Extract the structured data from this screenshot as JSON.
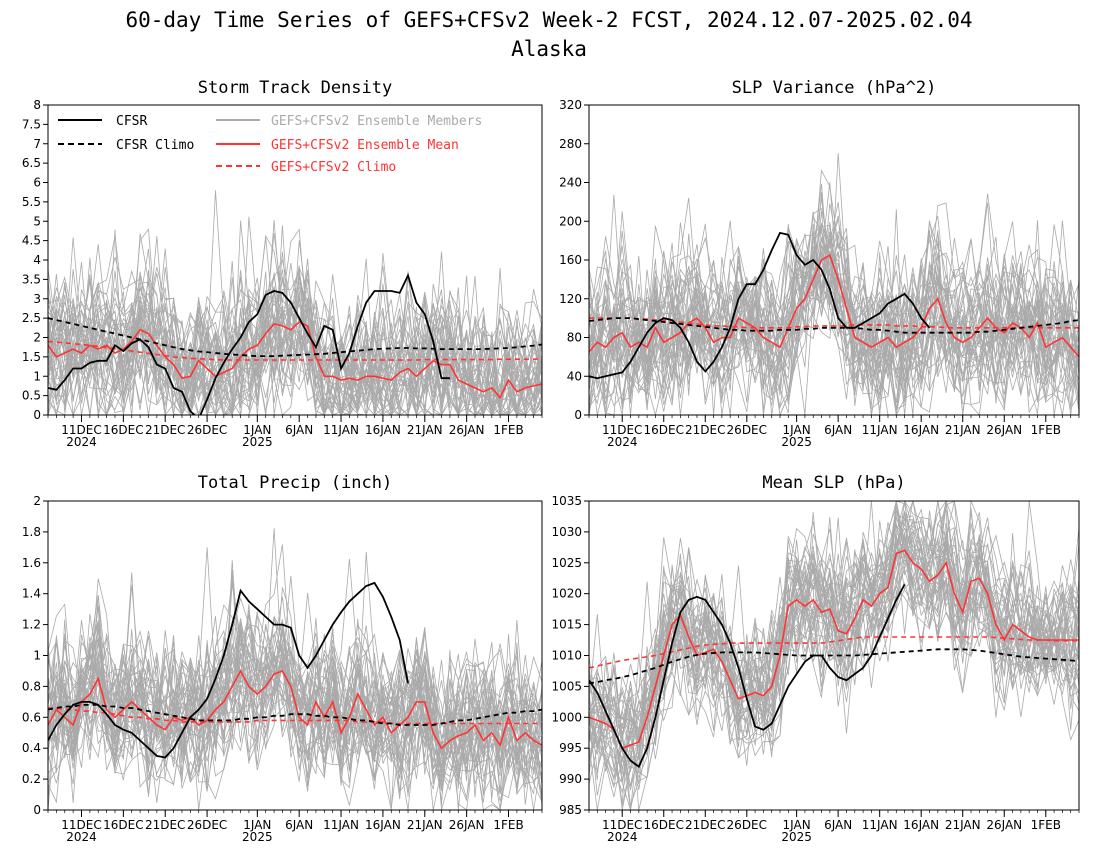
{
  "page": {
    "title_line1": "60-day Time Series of GEFS+CFSv2 Week-2 FCST, 2024.12.07-2025.02.04",
    "title_line2": "Alaska"
  },
  "colors": {
    "cfsr": "#000000",
    "ensemble_members": "#aaaaaa",
    "ensemble_mean": "#ff3333",
    "gefs_climo": "#ff3333"
  },
  "legend": {
    "cfsr": "CFSR",
    "cfsr_climo": "CFSR Climo",
    "members": "GEFS+CFSv2 Ensemble Members",
    "mean": "GEFS+CFSv2 Ensemble Mean",
    "gefs_climo": "GEFS+CFSv2 Climo"
  },
  "x_axis": {
    "n_days": 60,
    "tick_days": [
      4,
      9,
      14,
      19,
      25,
      30,
      35,
      40,
      45,
      50,
      55
    ],
    "tick_labels": [
      "11DEC",
      "16DEC",
      "21DEC",
      "26DEC",
      "1JAN",
      "6JAN",
      "11JAN",
      "16JAN",
      "21JAN",
      "26JAN",
      "1FEB"
    ],
    "year_labels": [
      {
        "day": 4,
        "text": "2024"
      },
      {
        "day": 25,
        "text": "2025"
      }
    ]
  },
  "chart_data": [
    {
      "type": "line",
      "title": "Storm Track Density",
      "ylim": [
        0,
        8
      ],
      "yticks": [
        "0",
        "0.5",
        "1",
        "1.5",
        "2",
        "2.5",
        "3",
        "3.5",
        "4",
        "4.5",
        "5",
        "5.5",
        "6",
        "6.5",
        "7",
        "7.5",
        "8"
      ],
      "member_spread": 1.1,
      "member_max": 5.8,
      "series": {
        "cfsr": [
          0.7,
          0.65,
          0.9,
          1.2,
          1.2,
          1.35,
          1.4,
          1.4,
          1.8,
          1.65,
          1.85,
          1.95,
          1.75,
          1.3,
          1.2,
          0.7,
          0.6,
          0.1,
          -0.1,
          0.4,
          0.95,
          1.35,
          1.7,
          2.0,
          2.4,
          2.6,
          3.1,
          3.2,
          3.15,
          2.9,
          2.5,
          2.1,
          1.75,
          2.3,
          2.2,
          1.2,
          1.6,
          2.3,
          2.9,
          3.2,
          3.2,
          3.2,
          3.15,
          3.6,
          2.9,
          2.6,
          1.9,
          0.95,
          0.95
        ],
        "cfsr_climo": [
          2.5,
          2.45,
          2.4,
          2.35,
          2.3,
          2.25,
          2.2,
          2.15,
          2.1,
          2.05,
          2.0,
          1.95,
          1.9,
          1.85,
          1.8,
          1.75,
          1.7,
          1.67,
          1.64,
          1.62,
          1.6,
          1.58,
          1.56,
          1.55,
          1.53,
          1.52,
          1.52,
          1.52,
          1.53,
          1.54,
          1.55,
          1.56,
          1.57,
          1.58,
          1.6,
          1.62,
          1.64,
          1.66,
          1.68,
          1.7,
          1.71,
          1.72,
          1.73,
          1.73,
          1.72,
          1.72,
          1.71,
          1.7,
          1.7,
          1.7,
          1.7,
          1.7,
          1.7,
          1.71,
          1.72,
          1.73,
          1.75,
          1.77,
          1.79,
          1.82
        ],
        "mean": [
          1.8,
          1.5,
          1.6,
          1.7,
          1.6,
          1.8,
          1.7,
          1.8,
          1.6,
          1.7,
          1.9,
          2.2,
          2.1,
          1.8,
          1.5,
          1.3,
          0.95,
          1.0,
          1.4,
          1.2,
          1.0,
          1.1,
          1.2,
          1.5,
          1.7,
          1.8,
          2.1,
          2.35,
          2.3,
          2.2,
          2.4,
          2.3,
          1.5,
          1.0,
          1.0,
          0.9,
          0.95,
          0.9,
          1.0,
          1.0,
          0.95,
          0.9,
          1.1,
          1.2,
          1.0,
          1.2,
          1.4,
          1.3,
          1.3,
          0.9,
          0.8,
          0.7,
          0.6,
          0.7,
          0.45,
          0.9,
          0.6,
          0.7,
          0.75,
          0.8
        ],
        "gefs_climo": [
          1.9,
          1.88,
          1.86,
          1.84,
          1.82,
          1.8,
          1.77,
          1.74,
          1.71,
          1.68,
          1.65,
          1.62,
          1.59,
          1.56,
          1.53,
          1.5,
          1.48,
          1.46,
          1.45,
          1.44,
          1.43,
          1.42,
          1.42,
          1.42,
          1.42,
          1.42,
          1.42,
          1.42,
          1.42,
          1.42,
          1.42,
          1.42,
          1.42,
          1.42,
          1.42,
          1.42,
          1.42,
          1.42,
          1.42,
          1.42,
          1.42,
          1.42,
          1.42,
          1.42,
          1.42,
          1.43,
          1.43,
          1.43,
          1.43,
          1.43,
          1.43,
          1.43,
          1.43,
          1.43,
          1.44,
          1.44,
          1.44,
          1.44,
          1.44,
          1.45
        ]
      }
    },
    {
      "type": "line",
      "title": "SLP Variance (hPa^2)",
      "ylim": [
        0,
        320
      ],
      "yticks": [
        "0",
        "40",
        "80",
        "120",
        "160",
        "200",
        "240",
        "280",
        "320"
      ],
      "member_spread": 45,
      "member_max": 320,
      "series": {
        "cfsr": [
          40,
          38,
          40,
          42,
          44,
          55,
          70,
          85,
          95,
          100,
          98,
          90,
          75,
          55,
          45,
          55,
          70,
          90,
          120,
          135,
          135,
          150,
          170,
          188,
          186,
          165,
          155,
          160,
          150,
          130,
          100,
          90,
          90,
          95,
          100,
          105,
          115,
          120,
          125,
          115,
          100,
          90
        ],
        "cfsr_climo": [
          97,
          98,
          99,
          100,
          100,
          100,
          99,
          98,
          97,
          96,
          95,
          94,
          93,
          92,
          91,
          90,
          89,
          88,
          88,
          87,
          87,
          87,
          87,
          88,
          88,
          88,
          89,
          89,
          90,
          90,
          90,
          90,
          90,
          89,
          88,
          88,
          87,
          86,
          85,
          85,
          85,
          85,
          85,
          85,
          85,
          85,
          85,
          86,
          86,
          87,
          88,
          89,
          90,
          91,
          92,
          93,
          94,
          95,
          97,
          98
        ],
        "mean": [
          65,
          75,
          70,
          80,
          85,
          70,
          75,
          70,
          90,
          75,
          80,
          85,
          95,
          100,
          90,
          75,
          80,
          80,
          100,
          95,
          90,
          80,
          75,
          70,
          90,
          110,
          120,
          140,
          160,
          165,
          140,
          110,
          80,
          75,
          70,
          75,
          80,
          70,
          75,
          80,
          90,
          110,
          120,
          95,
          80,
          75,
          80,
          90,
          100,
          90,
          85,
          95,
          90,
          80,
          95,
          70,
          75,
          80,
          70,
          60
        ],
        "gefs_climo": [
          100,
          100,
          100,
          100,
          100,
          100,
          99,
          99,
          98,
          98,
          97,
          96,
          95,
          94,
          93,
          92,
          92,
          91,
          91,
          90,
          90,
          90,
          90,
          90,
          90,
          91,
          91,
          92,
          92,
          92,
          92,
          92,
          93,
          93,
          93,
          93,
          93,
          92,
          92,
          92,
          91,
          91,
          91,
          90,
          90,
          90,
          90,
          90,
          90,
          90,
          90,
          90,
          90,
          90,
          90,
          90,
          90,
          90,
          90,
          90
        ]
      }
    },
    {
      "type": "line",
      "title": "Total Precip (inch)",
      "ylim": [
        0,
        2
      ],
      "yticks": [
        "0",
        "0.2",
        "0.4",
        "0.6",
        "0.8",
        "1",
        "1.2",
        "1.4",
        "1.6",
        "1.8",
        "2"
      ],
      "member_spread": 0.28,
      "member_max": 2.0,
      "series": {
        "cfsr": [
          0.45,
          0.55,
          0.62,
          0.68,
          0.7,
          0.7,
          0.68,
          0.62,
          0.55,
          0.52,
          0.5,
          0.45,
          0.4,
          0.35,
          0.34,
          0.4,
          0.5,
          0.6,
          0.65,
          0.72,
          0.85,
          1.0,
          1.2,
          1.42,
          1.35,
          1.3,
          1.25,
          1.2,
          1.2,
          1.18,
          1.0,
          0.92,
          1.0,
          1.1,
          1.2,
          1.28,
          1.35,
          1.4,
          1.45,
          1.47,
          1.38,
          1.25,
          1.1,
          0.82
        ],
        "cfsr_climo": [
          0.65,
          0.66,
          0.67,
          0.67,
          0.68,
          0.68,
          0.68,
          0.67,
          0.67,
          0.66,
          0.66,
          0.65,
          0.64,
          0.63,
          0.62,
          0.61,
          0.6,
          0.59,
          0.58,
          0.58,
          0.58,
          0.58,
          0.58,
          0.59,
          0.59,
          0.6,
          0.6,
          0.61,
          0.61,
          0.62,
          0.62,
          0.62,
          0.61,
          0.61,
          0.6,
          0.6,
          0.59,
          0.58,
          0.58,
          0.57,
          0.56,
          0.56,
          0.55,
          0.55,
          0.55,
          0.55,
          0.55,
          0.56,
          0.57,
          0.58,
          0.58,
          0.59,
          0.6,
          0.61,
          0.62,
          0.63,
          0.63,
          0.64,
          0.64,
          0.65
        ],
        "mean": [
          0.55,
          0.65,
          0.6,
          0.55,
          0.7,
          0.75,
          0.85,
          0.65,
          0.6,
          0.65,
          0.7,
          0.65,
          0.6,
          0.55,
          0.52,
          0.6,
          0.58,
          0.6,
          0.55,
          0.58,
          0.65,
          0.7,
          0.8,
          0.9,
          0.8,
          0.75,
          0.8,
          0.88,
          0.9,
          0.8,
          0.6,
          0.55,
          0.7,
          0.6,
          0.7,
          0.5,
          0.6,
          0.75,
          0.65,
          0.55,
          0.6,
          0.5,
          0.55,
          0.6,
          0.7,
          0.7,
          0.5,
          0.4,
          0.45,
          0.48,
          0.5,
          0.55,
          0.45,
          0.5,
          0.42,
          0.6,
          0.45,
          0.5,
          0.45,
          0.42
        ],
        "gefs_climo": [
          0.66,
          0.66,
          0.65,
          0.65,
          0.64,
          0.64,
          0.63,
          0.63,
          0.62,
          0.61,
          0.6,
          0.6,
          0.59,
          0.59,
          0.58,
          0.58,
          0.57,
          0.57,
          0.57,
          0.57,
          0.57,
          0.57,
          0.57,
          0.57,
          0.57,
          0.58,
          0.58,
          0.58,
          0.58,
          0.58,
          0.58,
          0.58,
          0.58,
          0.58,
          0.58,
          0.58,
          0.58,
          0.57,
          0.57,
          0.57,
          0.57,
          0.56,
          0.56,
          0.56,
          0.56,
          0.56,
          0.56,
          0.56,
          0.56,
          0.56,
          0.56,
          0.56,
          0.56,
          0.56,
          0.56,
          0.56,
          0.56,
          0.56,
          0.56,
          0.56
        ]
      }
    },
    {
      "type": "line",
      "title": "Mean SLP (hPa)",
      "ylim": [
        985,
        1035
      ],
      "yticks": [
        "985",
        "990",
        "995",
        "1000",
        "1005",
        "1010",
        "1015",
        "1020",
        "1025",
        "1030",
        "1035"
      ],
      "member_spread": 6,
      "member_max": 1035,
      "series": {
        "cfsr": [
          1006,
          1004,
          1001,
          998,
          995,
          993,
          992,
          995,
          1000,
          1006,
          1012,
          1017,
          1019,
          1019.5,
          1019,
          1017,
          1015,
          1012,
          1008,
          1003,
          998.5,
          998,
          999,
          1002,
          1005,
          1007,
          1009,
          1010,
          1010,
          1008,
          1006.5,
          1006,
          1007,
          1008,
          1010,
          1013,
          1016,
          1019,
          1021.5
        ],
        "cfsr_climo": [
          1005.5,
          1005.7,
          1006,
          1006.2,
          1006.5,
          1006.8,
          1007.2,
          1007.6,
          1008,
          1008.5,
          1009,
          1009.4,
          1009.8,
          1010.1,
          1010.3,
          1010.4,
          1010.5,
          1010.5,
          1010.5,
          1010.5,
          1010.5,
          1010.4,
          1010.3,
          1010.2,
          1010.1,
          1010,
          1010,
          1010,
          1010,
          1010,
          1010,
          1010,
          1010,
          1010.1,
          1010.2,
          1010.3,
          1010.4,
          1010.5,
          1010.6,
          1010.7,
          1010.8,
          1010.9,
          1011,
          1011,
          1011,
          1011,
          1010.9,
          1010.8,
          1010.6,
          1010.4,
          1010.2,
          1010,
          1009.8,
          1009.7,
          1009.6,
          1009.5,
          1009.4,
          1009.3,
          1009.2,
          1009.1
        ],
        "mean": [
          1000,
          999.5,
          999,
          998,
          995,
          995.5,
          996,
          1000,
          1005,
          1010,
          1015,
          1016.5,
          1013,
          1010,
          1010.5,
          1011,
          1009,
          1006,
          1003,
          1003.5,
          1004,
          1003.5,
          1005,
          1010,
          1018,
          1019,
          1018,
          1019,
          1017,
          1017.5,
          1014,
          1013.5,
          1016,
          1019,
          1018,
          1020,
          1021,
          1026.5,
          1027,
          1025,
          1024,
          1022,
          1023,
          1025,
          1020,
          1017,
          1022,
          1022.5,
          1020,
          1015,
          1012.5,
          1015,
          1014,
          1013,
          1012.5,
          1012.5,
          1012.5,
          1012.5,
          1012.5,
          1012.5
        ],
        "gefs_climo": [
          1008,
          1008.3,
          1008.6,
          1008.9,
          1009.2,
          1009.4,
          1009.6,
          1009.8,
          1010,
          1010.3,
          1010.6,
          1010.9,
          1011.2,
          1011.5,
          1011.7,
          1011.8,
          1011.9,
          1012,
          1012,
          1012,
          1012,
          1012,
          1012,
          1012,
          1012,
          1012,
          1012,
          1012,
          1012,
          1012.2,
          1012.4,
          1012.6,
          1012.8,
          1013,
          1013,
          1013,
          1013,
          1013,
          1013,
          1013,
          1013,
          1013,
          1013,
          1013,
          1013,
          1013,
          1013,
          1013,
          1013,
          1012.9,
          1012.8,
          1012.7,
          1012.6,
          1012.5,
          1012.5,
          1012.5,
          1012.4,
          1012.4,
          1012.4,
          1012.4
        ]
      }
    }
  ]
}
